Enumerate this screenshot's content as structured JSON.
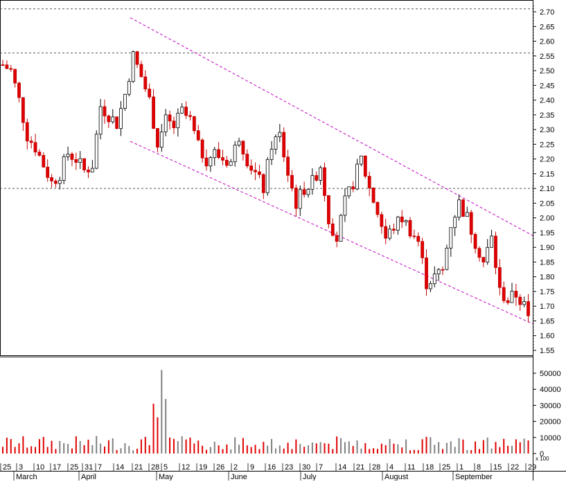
{
  "chart_data": {
    "type": "candlestick",
    "title": "",
    "price_axis": {
      "ylim": [
        1.55,
        2.72
      ],
      "ticks": [
        "2.70",
        "2.65",
        "2.60",
        "2.55",
        "2.50",
        "2.45",
        "2.40",
        "2.35",
        "2.30",
        "2.25",
        "2.20",
        "2.15",
        "2.10",
        "2.05",
        "2.00",
        "1.95",
        "1.90",
        "1.85",
        "1.80",
        "1.75",
        "1.70",
        "1.65",
        "1.60",
        "1.55"
      ]
    },
    "volume_axis": {
      "ylim": [
        0,
        58000
      ],
      "ticks": [
        "50000",
        "40000",
        "30000",
        "20000",
        "10000",
        "0"
      ],
      "multiplier_label": "x 100"
    },
    "x_axis": {
      "day_labels": [
        "25",
        "3",
        "10",
        "17",
        "25",
        "31",
        "7",
        "14",
        "21",
        "28",
        "5",
        "12",
        "19",
        "26",
        "2",
        "9",
        "16",
        "23",
        "30",
        "7",
        "14",
        "21",
        "28",
        "4",
        "11",
        "18",
        "25",
        "1",
        "8",
        "15",
        "22",
        "29"
      ],
      "month_labels": [
        "March",
        "April",
        "May",
        "June",
        "July",
        "August",
        "September"
      ]
    },
    "horizontal_lines": [
      2.71,
      2.56,
      2.1
    ],
    "channel_lines": {
      "upper": {
        "start": [
          "Apr 21",
          2.68
        ],
        "end": [
          "Sep 29",
          1.94
        ]
      },
      "lower": {
        "start": [
          "Apr 21",
          2.26
        ],
        "end": [
          "Sep 29",
          1.64
        ]
      }
    },
    "colors": {
      "up": "#ffffff",
      "down": "#e00000",
      "channel": "#c000c0",
      "grid": "#555555",
      "volume_up": "#808080",
      "volume_down": "#e00000"
    },
    "anchors": [
      [
        0,
        2.52
      ],
      [
        6,
        2.5
      ],
      [
        12,
        2.4
      ],
      [
        18,
        2.28
      ],
      [
        24,
        2.24
      ],
      [
        30,
        2.18
      ],
      [
        36,
        2.12
      ],
      [
        42,
        2.15
      ],
      [
        48,
        2.22
      ],
      [
        54,
        2.2
      ],
      [
        60,
        2.16
      ],
      [
        66,
        2.18
      ],
      [
        72,
        2.38
      ],
      [
        78,
        2.35
      ],
      [
        84,
        2.32
      ],
      [
        90,
        2.42
      ],
      [
        96,
        2.55
      ],
      [
        102,
        2.48
      ],
      [
        108,
        2.4
      ],
      [
        114,
        2.25
      ],
      [
        120,
        2.33
      ],
      [
        126,
        2.31
      ],
      [
        132,
        2.36
      ],
      [
        138,
        2.33
      ],
      [
        144,
        2.24
      ],
      [
        150,
        2.2
      ],
      [
        156,
        2.22
      ],
      [
        162,
        2.2
      ],
      [
        168,
        2.19
      ],
      [
        174,
        2.28
      ],
      [
        180,
        2.2
      ],
      [
        186,
        2.15
      ],
      [
        192,
        2.1
      ],
      [
        198,
        2.25
      ],
      [
        204,
        2.28
      ],
      [
        210,
        2.15
      ],
      [
        216,
        2.05
      ],
      [
        222,
        2.1
      ],
      [
        228,
        2.12
      ],
      [
        234,
        2.18
      ],
      [
        240,
        2.0
      ],
      [
        246,
        1.93
      ],
      [
        252,
        2.05
      ],
      [
        258,
        2.12
      ],
      [
        264,
        2.2
      ],
      [
        270,
        2.1
      ],
      [
        276,
        2.02
      ],
      [
        282,
        1.93
      ],
      [
        288,
        1.97
      ],
      [
        294,
        2.0
      ],
      [
        300,
        1.96
      ],
      [
        306,
        1.92
      ],
      [
        312,
        1.78
      ],
      [
        318,
        1.8
      ],
      [
        324,
        1.82
      ],
      [
        330,
        1.98
      ],
      [
        336,
        2.05
      ],
      [
        342,
        2.0
      ],
      [
        348,
        1.92
      ],
      [
        354,
        1.85
      ],
      [
        360,
        1.93
      ],
      [
        366,
        1.75
      ],
      [
        372,
        1.72
      ],
      [
        378,
        1.74
      ],
      [
        384,
        1.7
      ],
      [
        388,
        1.64
      ]
    ]
  }
}
